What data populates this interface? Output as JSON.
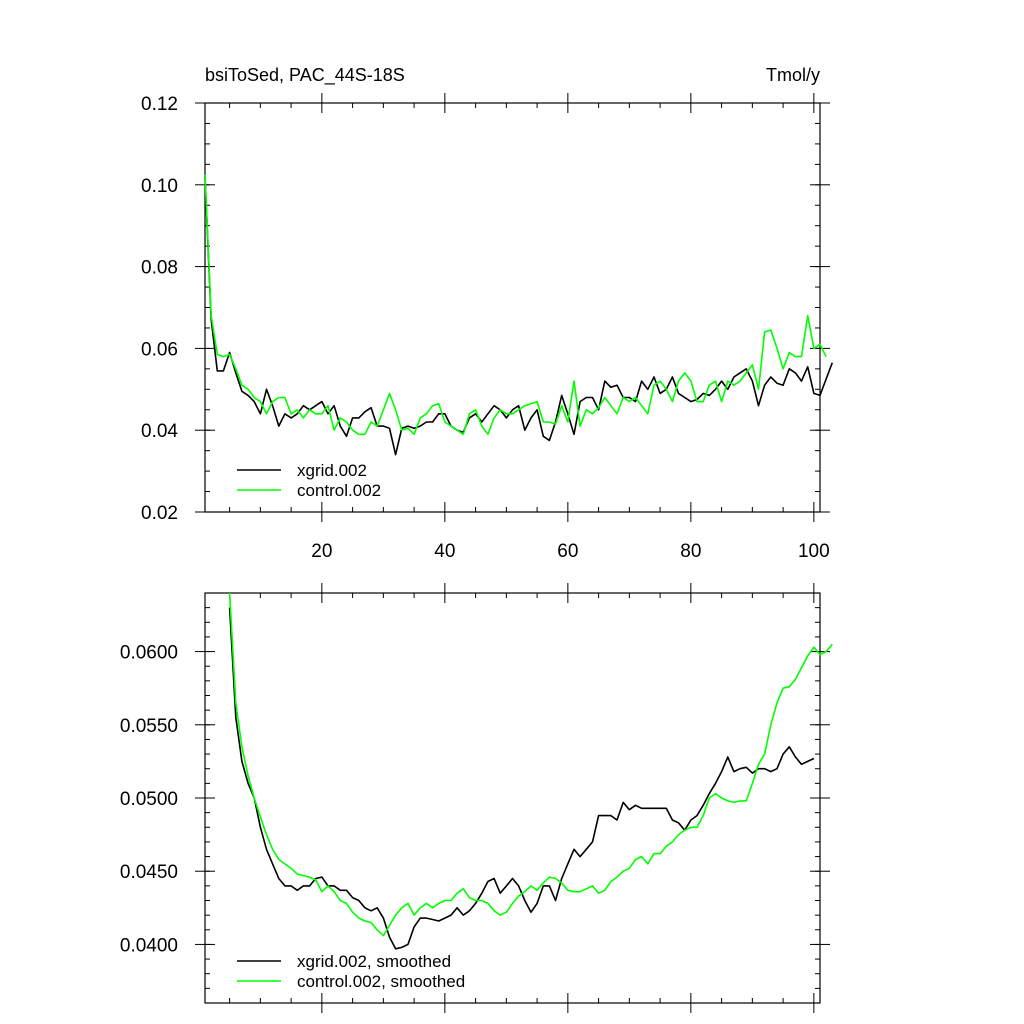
{
  "chart_data": [
    {
      "type": "line",
      "title_left": "bsiToSed, PAC_44S-18S",
      "title_right": "Tmol/y",
      "xlim": [
        1,
        101
      ],
      "ylim": [
        0.02,
        0.12
      ],
      "x_ticks": [
        20,
        40,
        60,
        80,
        100
      ],
      "x_tick_labels": [
        "20",
        "40",
        "60",
        "80",
        "100"
      ],
      "y_ticks": [
        0.02,
        0.04,
        0.06,
        0.08,
        0.1,
        0.12
      ],
      "y_tick_labels": [
        "0.02",
        "0.04",
        "0.06",
        "0.08",
        "0.10",
        "0.12"
      ],
      "legend_position": "bottom-left",
      "series": [
        {
          "name": "xgrid.002",
          "color": "#000000",
          "x_start": 1,
          "values": [
            0.102,
            0.067,
            0.0545,
            0.0545,
            0.059,
            0.054,
            0.0495,
            0.0485,
            0.047,
            0.044,
            0.05,
            0.046,
            0.041,
            0.044,
            0.043,
            0.044,
            0.046,
            0.045,
            0.046,
            0.047,
            0.044,
            0.046,
            0.041,
            0.0385,
            0.043,
            0.043,
            0.0445,
            0.0455,
            0.041,
            0.041,
            0.0405,
            0.034,
            0.0405,
            0.041,
            0.0405,
            0.041,
            0.042,
            0.042,
            0.044,
            0.044,
            0.041,
            0.04,
            0.0395,
            0.043,
            0.044,
            0.042,
            0.044,
            0.046,
            0.045,
            0.043,
            0.045,
            0.046,
            0.04,
            0.043,
            0.045,
            0.0385,
            0.0375,
            0.042,
            0.0485,
            0.044,
            0.039,
            0.047,
            0.048,
            0.048,
            0.045,
            0.052,
            0.0505,
            0.051,
            0.048,
            0.048,
            0.047,
            0.052,
            0.05,
            0.053,
            0.049,
            0.05,
            0.053,
            0.049,
            0.048,
            0.047,
            0.0475,
            0.049,
            0.0485,
            0.05,
            0.052,
            0.05,
            0.053,
            0.054,
            0.055,
            0.052,
            0.046,
            0.051,
            0.053,
            0.0515,
            0.051,
            0.055,
            0.054,
            0.052,
            0.0555,
            0.049,
            0.0485,
            0.0525,
            0.0565
          ]
        },
        {
          "name": "control.002",
          "color": "#00ff00",
          "x_start": 1,
          "values": [
            0.1025,
            0.068,
            0.0585,
            0.058,
            0.0585,
            0.055,
            0.051,
            0.05,
            0.048,
            0.047,
            0.044,
            0.047,
            0.048,
            0.048,
            0.044,
            0.045,
            0.043,
            0.045,
            0.044,
            0.044,
            0.046,
            0.04,
            0.043,
            0.042,
            0.04,
            0.039,
            0.039,
            0.042,
            0.041,
            0.045,
            0.049,
            0.045,
            0.04,
            0.0405,
            0.039,
            0.043,
            0.044,
            0.046,
            0.0465,
            0.042,
            0.041,
            0.04,
            0.039,
            0.044,
            0.045,
            0.041,
            0.039,
            0.043,
            0.045,
            0.044,
            0.044,
            0.045,
            0.046,
            0.0465,
            0.047,
            0.042,
            0.042,
            0.0415,
            0.046,
            0.042,
            0.052,
            0.041,
            0.045,
            0.044,
            0.0455,
            0.048,
            0.046,
            0.044,
            0.048,
            0.047,
            0.048,
            0.046,
            0.044,
            0.051,
            0.052,
            0.05,
            0.047,
            0.052,
            0.054,
            0.052,
            0.047,
            0.047,
            0.051,
            0.052,
            0.047,
            0.052,
            0.051,
            0.052,
            0.054,
            0.056,
            0.05,
            0.064,
            0.0645,
            0.06,
            0.055,
            0.059,
            0.058,
            0.058,
            0.068,
            0.06,
            0.061,
            0.058
          ]
        }
      ]
    },
    {
      "type": "line",
      "xlim": [
        1,
        101
      ],
      "ylim": [
        0.036,
        0.064
      ],
      "x_ticks": [
        20,
        40,
        60,
        80,
        100
      ],
      "y_ticks": [
        0.04,
        0.045,
        0.05,
        0.055,
        0.06
      ],
      "y_tick_labels": [
        "0.0400",
        "0.0450",
        "0.0500",
        "0.0550",
        "0.0600"
      ],
      "legend_position": "bottom-left",
      "series": [
        {
          "name": "xgrid.002, smoothed",
          "color": "#000000",
          "x_start": 5,
          "values": [
            0.063,
            0.0555,
            0.0525,
            0.051,
            0.05,
            0.048,
            0.0465,
            0.0455,
            0.0445,
            0.044,
            0.044,
            0.0437,
            0.044,
            0.044,
            0.0445,
            0.0446,
            0.044,
            0.044,
            0.0437,
            0.0437,
            0.0432,
            0.043,
            0.0425,
            0.0423,
            0.0425,
            0.0418,
            0.0405,
            0.0397,
            0.0398,
            0.04,
            0.0412,
            0.0418,
            0.0418,
            0.0417,
            0.0416,
            0.0418,
            0.042,
            0.0425,
            0.042,
            0.0423,
            0.0428,
            0.0435,
            0.0443,
            0.0445,
            0.0435,
            0.044,
            0.0445,
            0.044,
            0.043,
            0.0422,
            0.0428,
            0.044,
            0.044,
            0.043,
            0.0445,
            0.0455,
            0.0465,
            0.046,
            0.0465,
            0.047,
            0.0488,
            0.0488,
            0.0488,
            0.0485,
            0.0497,
            0.0492,
            0.0495,
            0.0493,
            0.0493,
            0.0493,
            0.0493,
            0.0493,
            0.0485,
            0.0483,
            0.0478,
            0.0485,
            0.0488,
            0.0495,
            0.0503,
            0.051,
            0.0518,
            0.0528,
            0.0518,
            0.052,
            0.0521,
            0.0517,
            0.052,
            0.052,
            0.0518,
            0.052,
            0.053,
            0.0535,
            0.0528,
            0.0523,
            0.0525,
            0.0527
          ]
        },
        {
          "name": "control.002, smoothed",
          "color": "#00ff00",
          "x_start": 5,
          "values": [
            0.064,
            0.0565,
            0.0535,
            0.0515,
            0.05,
            0.0487,
            0.0475,
            0.0465,
            0.0458,
            0.0455,
            0.0452,
            0.0448,
            0.0447,
            0.0446,
            0.0444,
            0.0436,
            0.044,
            0.0436,
            0.043,
            0.0428,
            0.0422,
            0.0418,
            0.0416,
            0.0415,
            0.041,
            0.0406,
            0.0413,
            0.042,
            0.0425,
            0.0428,
            0.042,
            0.0425,
            0.0428,
            0.0425,
            0.0428,
            0.043,
            0.043,
            0.0435,
            0.0438,
            0.0432,
            0.043,
            0.043,
            0.0428,
            0.0423,
            0.042,
            0.0422,
            0.0428,
            0.0433,
            0.0436,
            0.044,
            0.0437,
            0.0442,
            0.0446,
            0.0445,
            0.0442,
            0.0437,
            0.0436,
            0.0436,
            0.0438,
            0.044,
            0.0435,
            0.0437,
            0.0443,
            0.0446,
            0.045,
            0.0452,
            0.0458,
            0.046,
            0.0455,
            0.0462,
            0.0462,
            0.0467,
            0.047,
            0.0475,
            0.0478,
            0.048,
            0.048,
            0.0488,
            0.05,
            0.0503,
            0.05,
            0.0498,
            0.0497,
            0.0498,
            0.0498,
            0.051,
            0.0523,
            0.053,
            0.055,
            0.0565,
            0.0575,
            0.0576,
            0.0581,
            0.0589,
            0.0597,
            0.0603,
            0.0598,
            0.06,
            0.0605
          ]
        }
      ]
    }
  ]
}
